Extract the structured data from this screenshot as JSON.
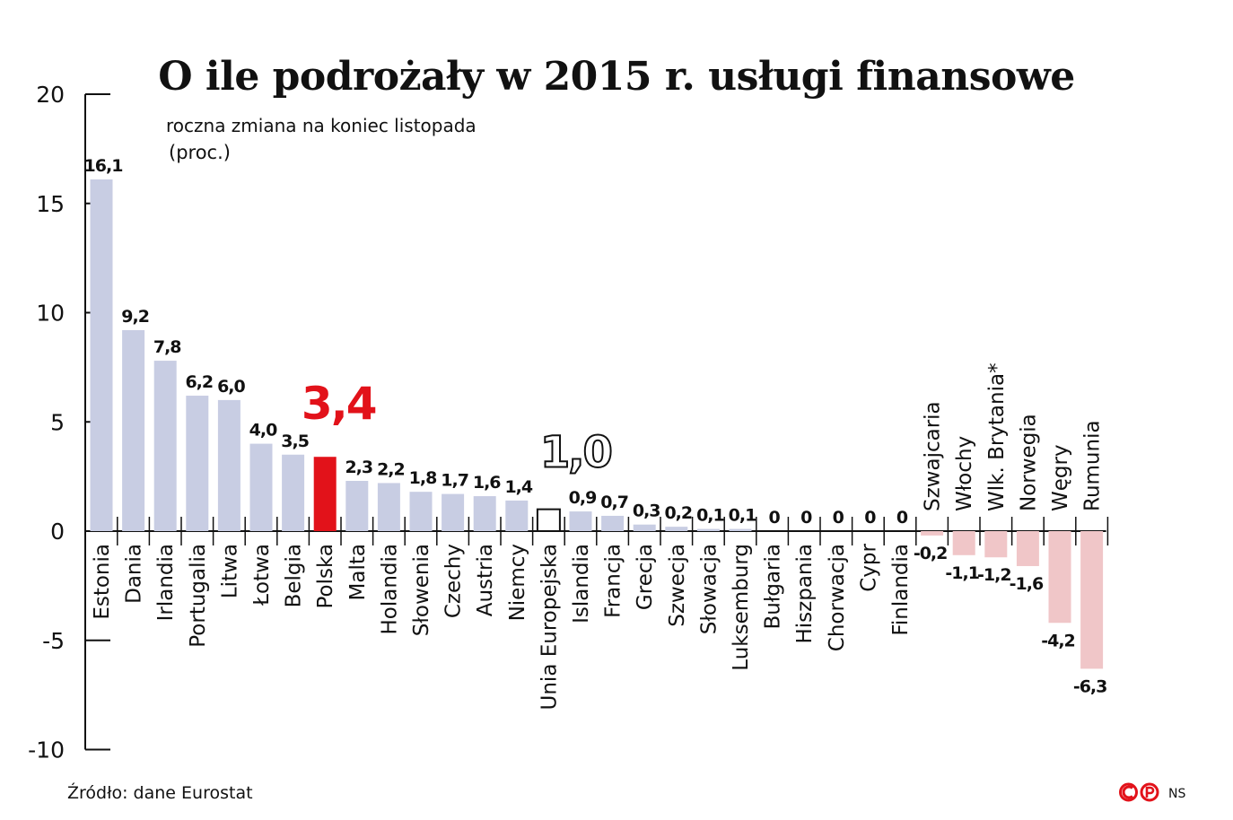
{
  "chart_data": {
    "type": "bar",
    "title": "O ile podrożały w 2015 r. usługi finansowe",
    "subtitle": "roczna zmiana na koniec listopada",
    "unit": "(proc.)",
    "source": "Źródło: dane Eurostat",
    "author": "NS",
    "ylim": [
      -10,
      20
    ],
    "yticks": [
      "-10",
      "-5",
      "0",
      "5",
      "10",
      "15",
      "20"
    ],
    "categories": [
      "Estonia",
      "Dania",
      "Irlandia",
      "Portugalia",
      "Litwa",
      "Łotwa",
      "Belgia",
      "Polska",
      "Malta",
      "Holandia",
      "Słowenia",
      "Czechy",
      "Austria",
      "Niemcy",
      "Unia Europejska",
      "Islandia",
      "Francja",
      "Grecja",
      "Szwecja",
      "Słowacja",
      "Luksemburg",
      "Bułgaria",
      "Hiszpania",
      "Chorwacja",
      "Cypr",
      "Finlandia",
      "Szwajcaria",
      "Włochy",
      "Wlk. Brytania*",
      "Norwegia",
      "Węgry",
      "Rumunia"
    ],
    "values": [
      16.1,
      9.2,
      7.8,
      6.2,
      6.0,
      4.0,
      3.5,
      3.4,
      2.3,
      2.2,
      1.8,
      1.7,
      1.6,
      1.4,
      1.0,
      0.9,
      0.7,
      0.3,
      0.2,
      0.1,
      0.1,
      0,
      0,
      0,
      0,
      0,
      -0.2,
      -1.1,
      -1.2,
      -1.6,
      -4.2,
      -6.3
    ],
    "value_labels": [
      "16,1",
      "9,2",
      "7,8",
      "6,2",
      "6,0",
      "4,0",
      "3,5",
      "3,4",
      "2,3",
      "2,2",
      "1,8",
      "1,7",
      "1,6",
      "1,4",
      "1,0",
      "0,9",
      "0,7",
      "0,3",
      "0,2",
      "0,1",
      "0,1",
      "0",
      "0",
      "0",
      "0",
      "0",
      "-0,2",
      "-1,1",
      "-1,2",
      "-1,6",
      "-4,2",
      "-6,3"
    ],
    "highlight": {
      "Polska": "#e2121a",
      "Unia Europejska": "outline"
    },
    "colors": {
      "positive": "#c8cde3",
      "negative": "#f0c6c8",
      "highlight": "#e2121a",
      "text": "#111111"
    }
  }
}
